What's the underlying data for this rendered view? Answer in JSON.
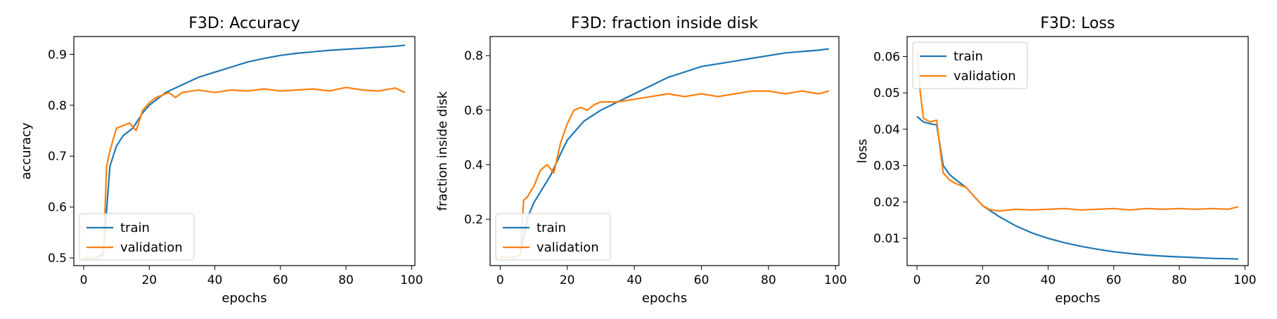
{
  "colors": {
    "train": "#1f77b4",
    "validation": "#ff7f0e"
  },
  "chart_data": [
    {
      "type": "line",
      "title": "F3D: Accuracy",
      "xlabel": "epochs",
      "ylabel": "accuracy",
      "xlim": [
        -3,
        101
      ],
      "ylim": [
        0.485,
        0.935
      ],
      "xticks": [
        0,
        20,
        40,
        60,
        80,
        100
      ],
      "yticks": [
        0.5,
        0.6,
        0.7,
        0.8,
        0.9
      ],
      "ytick_labels": [
        "0.5",
        "0.6",
        "0.7",
        "0.8",
        "0.9"
      ],
      "legend": "lower-left",
      "series": [
        {
          "name": "train",
          "x": [
            0,
            2,
            4,
            6,
            8,
            10,
            12,
            15,
            18,
            20,
            25,
            30,
            35,
            40,
            45,
            50,
            55,
            60,
            65,
            70,
            75,
            80,
            85,
            90,
            95,
            98
          ],
          "values": [
            0.5,
            0.5,
            0.5,
            0.51,
            0.68,
            0.72,
            0.74,
            0.755,
            0.785,
            0.8,
            0.825,
            0.84,
            0.855,
            0.865,
            0.875,
            0.885,
            0.892,
            0.898,
            0.902,
            0.905,
            0.908,
            0.91,
            0.912,
            0.914,
            0.916,
            0.918
          ]
        },
        {
          "name": "validation",
          "x": [
            0,
            2,
            4,
            6,
            7,
            8,
            10,
            12,
            14,
            16,
            18,
            20,
            22,
            24,
            26,
            28,
            30,
            35,
            40,
            45,
            50,
            55,
            60,
            65,
            70,
            75,
            80,
            85,
            90,
            95,
            98
          ],
          "values": [
            0.5,
            0.5,
            0.5,
            0.505,
            0.68,
            0.71,
            0.755,
            0.76,
            0.765,
            0.75,
            0.79,
            0.805,
            0.815,
            0.82,
            0.825,
            0.815,
            0.825,
            0.83,
            0.825,
            0.83,
            0.828,
            0.832,
            0.828,
            0.83,
            0.832,
            0.828,
            0.835,
            0.83,
            0.828,
            0.834,
            0.825
          ]
        }
      ]
    },
    {
      "type": "line",
      "title": "F3D: fraction inside disk",
      "xlabel": "epochs",
      "ylabel": "fraction inside disk",
      "xlim": [
        -3,
        101
      ],
      "ylim": [
        0.03,
        0.87
      ],
      "xticks": [
        0,
        20,
        40,
        60,
        80,
        100
      ],
      "yticks": [
        0.2,
        0.4,
        0.6,
        0.8
      ],
      "ytick_labels": [
        "0.2",
        "0.4",
        "0.6",
        "0.8"
      ],
      "legend": "lower-left",
      "series": [
        {
          "name": "train",
          "x": [
            0,
            2,
            4,
            6,
            8,
            10,
            12,
            15,
            18,
            20,
            25,
            30,
            35,
            40,
            45,
            50,
            55,
            60,
            65,
            70,
            75,
            80,
            85,
            90,
            95,
            98
          ],
          "values": [
            0.06,
            0.06,
            0.06,
            0.07,
            0.2,
            0.26,
            0.3,
            0.36,
            0.44,
            0.49,
            0.56,
            0.6,
            0.63,
            0.66,
            0.69,
            0.72,
            0.74,
            0.76,
            0.77,
            0.78,
            0.79,
            0.8,
            0.81,
            0.815,
            0.82,
            0.825
          ]
        },
        {
          "name": "validation",
          "x": [
            0,
            2,
            4,
            6,
            7,
            8,
            10,
            12,
            14,
            16,
            18,
            20,
            22,
            24,
            26,
            28,
            30,
            35,
            40,
            45,
            50,
            55,
            60,
            65,
            70,
            75,
            80,
            85,
            90,
            95,
            98
          ],
          "values": [
            0.06,
            0.06,
            0.06,
            0.07,
            0.27,
            0.28,
            0.32,
            0.38,
            0.4,
            0.37,
            0.48,
            0.55,
            0.6,
            0.61,
            0.6,
            0.62,
            0.63,
            0.63,
            0.64,
            0.65,
            0.66,
            0.65,
            0.66,
            0.65,
            0.66,
            0.67,
            0.67,
            0.66,
            0.67,
            0.66,
            0.67
          ]
        }
      ]
    },
    {
      "type": "line",
      "title": "F3D: Loss",
      "xlabel": "epochs",
      "ylabel": "loss",
      "xlim": [
        -3,
        101
      ],
      "ylim": [
        0.0025,
        0.0655
      ],
      "xticks": [
        0,
        20,
        40,
        60,
        80,
        100
      ],
      "yticks": [
        0.01,
        0.02,
        0.03,
        0.04,
        0.05,
        0.06
      ],
      "ytick_labels": [
        "0.01",
        "0.02",
        "0.03",
        "0.04",
        "0.05",
        "0.06"
      ],
      "legend": "upper-left",
      "series": [
        {
          "name": "train",
          "x": [
            0,
            2,
            4,
            6,
            8,
            10,
            12,
            15,
            18,
            20,
            25,
            30,
            35,
            40,
            45,
            50,
            55,
            60,
            65,
            70,
            75,
            80,
            85,
            90,
            95,
            98
          ],
          "values": [
            0.0435,
            0.042,
            0.0415,
            0.0412,
            0.03,
            0.0275,
            0.026,
            0.024,
            0.021,
            0.019,
            0.016,
            0.0135,
            0.0115,
            0.01,
            0.0088,
            0.0078,
            0.007,
            0.0063,
            0.0058,
            0.0054,
            0.0051,
            0.0049,
            0.0047,
            0.0045,
            0.0044,
            0.0043
          ]
        },
        {
          "name": "validation",
          "x": [
            0,
            1,
            2,
            4,
            6,
            7,
            8,
            10,
            12,
            15,
            18,
            20,
            22,
            25,
            30,
            35,
            40,
            45,
            50,
            55,
            60,
            65,
            70,
            75,
            80,
            85,
            90,
            95,
            98
          ],
          "values": [
            0.062,
            0.05,
            0.043,
            0.042,
            0.0425,
            0.035,
            0.028,
            0.026,
            0.025,
            0.024,
            0.021,
            0.019,
            0.018,
            0.0175,
            0.018,
            0.0178,
            0.018,
            0.0182,
            0.0178,
            0.018,
            0.0182,
            0.0178,
            0.0182,
            0.018,
            0.0182,
            0.018,
            0.0182,
            0.018,
            0.0187
          ]
        }
      ]
    }
  ]
}
